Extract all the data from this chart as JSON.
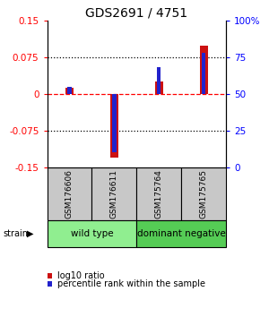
{
  "title": "GDS2691 / 4751",
  "samples": [
    "GSM176606",
    "GSM176611",
    "GSM175764",
    "GSM175765"
  ],
  "log10_ratio": [
    0.012,
    -0.13,
    0.025,
    0.098
  ],
  "percentile_rank": [
    55,
    10,
    68,
    78
  ],
  "groups": [
    {
      "label": "wild type",
      "samples": [
        0,
        1
      ],
      "color": "#90EE90"
    },
    {
      "label": "dominant negative",
      "samples": [
        2,
        3
      ],
      "color": "#55CC55"
    }
  ],
  "group_label": "strain",
  "ylim_left": [
    -0.15,
    0.15
  ],
  "ylim_right": [
    0,
    100
  ],
  "yticks_left": [
    -0.15,
    -0.075,
    0,
    0.075,
    0.15
  ],
  "ytick_labels_left": [
    "-0.15",
    "-0.075",
    "0",
    "0.075",
    "0.15"
  ],
  "yticks_right": [
    0,
    25,
    50,
    75,
    100
  ],
  "ytick_labels_right": [
    "0",
    "25",
    "50",
    "75",
    "100%"
  ],
  "hlines_dotted": [
    0.075,
    -0.075
  ],
  "hline_dashed_red": 0.0,
  "bar_color_red": "#CC1111",
  "bar_color_blue": "#2222CC",
  "red_bar_width": 0.18,
  "blue_bar_width": 0.09,
  "legend_items": [
    {
      "color": "#CC1111",
      "label": "log10 ratio"
    },
    {
      "color": "#2222CC",
      "label": "percentile rank within the sample"
    }
  ],
  "sample_box_color": "#C8C8C8",
  "title_fontsize": 10,
  "tick_fontsize": 7.5,
  "sample_fontsize": 6.5,
  "group_fontsize": 7.5,
  "legend_fontsize": 7
}
